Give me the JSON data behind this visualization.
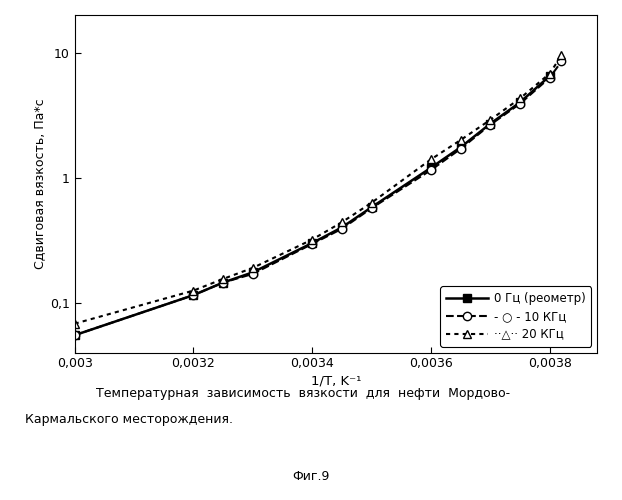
{
  "series_0_x": [
    0.003,
    0.0032,
    0.00325,
    0.0033,
    0.0034,
    0.00345,
    0.0035,
    0.0036,
    0.00365,
    0.0037,
    0.00375,
    0.0038
  ],
  "series_0_y": [
    0.055,
    0.115,
    0.145,
    0.175,
    0.3,
    0.4,
    0.58,
    1.2,
    1.75,
    2.7,
    4.0,
    6.5
  ],
  "series_1_x": [
    0.003,
    0.0032,
    0.00325,
    0.0033,
    0.0034,
    0.00345,
    0.0035,
    0.0036,
    0.00365,
    0.0037,
    0.00375,
    0.0038,
    0.00382
  ],
  "series_1_y": [
    0.055,
    0.115,
    0.145,
    0.17,
    0.295,
    0.39,
    0.57,
    1.15,
    1.7,
    2.65,
    3.9,
    6.3,
    8.5
  ],
  "series_2_x": [
    0.003,
    0.0032,
    0.00325,
    0.0033,
    0.0034,
    0.00345,
    0.0035,
    0.0036,
    0.00365,
    0.0037,
    0.00375,
    0.0038,
    0.00382
  ],
  "series_2_y": [
    0.068,
    0.125,
    0.155,
    0.19,
    0.32,
    0.44,
    0.63,
    1.4,
    2.0,
    2.9,
    4.3,
    6.8,
    9.5
  ],
  "xlabel": "1/T, K⁻¹",
  "ylabel": "Сдвиговая вязкость, Па*с",
  "xlim": [
    0.003,
    0.00388
  ],
  "ylim_log": [
    0.04,
    20
  ],
  "xticks": [
    0.003,
    0.0032,
    0.0034,
    0.0036,
    0.0038
  ],
  "xtick_labels": [
    "0,003",
    "0,0032",
    "0,0034",
    "0,0036",
    "0,0038"
  ],
  "ytick_vals": [
    0.1,
    1,
    10
  ],
  "ytick_labels": [
    "0,1",
    "1",
    "10"
  ],
  "caption_line1": "Температурная зависимость вязкости для нефти Мордово-",
  "caption_line2": "Кармальского месторождения.",
  "fig_label": "Фиг.9",
  "bg_color": "#ffffff",
  "legend_label_0": "0 Гц (реометр)",
  "legend_label_1": "- ○ - 10 КГц",
  "legend_label_2": "··△·· 20 КГц"
}
